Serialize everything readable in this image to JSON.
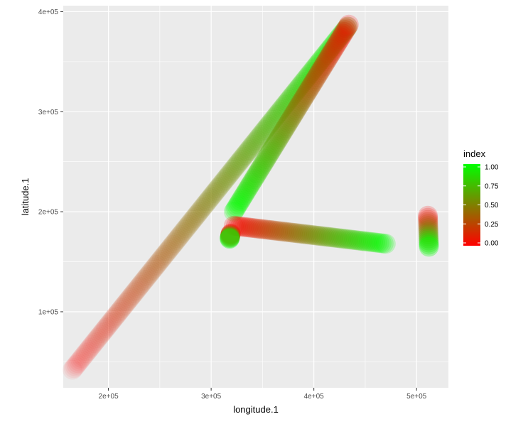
{
  "chart_data": {
    "type": "scatter",
    "xlabel": "longitude.1",
    "ylabel": "latitude.1",
    "xlim": [
      156000,
      531000
    ],
    "ylim": [
      24000,
      406000
    ],
    "x_ticks": [
      {
        "value": 200000,
        "label": "2e+05"
      },
      {
        "value": 300000,
        "label": "3e+05"
      },
      {
        "value": 400000,
        "label": "4e+05"
      },
      {
        "value": 500000,
        "label": "5e+05"
      }
    ],
    "y_ticks": [
      {
        "value": 100000,
        "label": "1e+05"
      },
      {
        "value": 200000,
        "label": "2e+05"
      },
      {
        "value": 300000,
        "label": "3e+05"
      },
      {
        "value": 400000,
        "label": "4e+05"
      }
    ],
    "grid": true,
    "legend": {
      "title": "index",
      "position": "right",
      "low_color": "#ff0000",
      "high_color": "#00ff00",
      "breaks": [
        {
          "value": 1.0,
          "label": "1.00"
        },
        {
          "value": 0.75,
          "label": "0.75"
        },
        {
          "value": 0.5,
          "label": "0.50"
        },
        {
          "value": 0.25,
          "label": "0.25"
        },
        {
          "value": 0.0,
          "label": "0.00"
        }
      ]
    },
    "series": [
      {
        "start": {
          "x": 165000,
          "y": 42000,
          "index": 0.0
        },
        "end": {
          "x": 433000,
          "y": 385000,
          "index": 1.0
        },
        "opacity_start": 0.15,
        "opacity_end": 0.45
      },
      {
        "start": {
          "x": 434000,
          "y": 387000,
          "index": 0.0
        },
        "end": {
          "x": 322000,
          "y": 200000,
          "index": 1.0
        },
        "opacity_start": 0.5,
        "opacity_end": 0.5
      },
      {
        "start": {
          "x": 322000,
          "y": 186000,
          "index": 0.0
        },
        "end": {
          "x": 470000,
          "y": 168000,
          "index": 1.0
        },
        "opacity_start": 0.5,
        "opacity_end": 0.5
      },
      {
        "start": {
          "x": 511000,
          "y": 196000,
          "index": 0.0
        },
        "end": {
          "x": 512000,
          "y": 165000,
          "index": 1.0
        },
        "opacity_start": 0.5,
        "opacity_end": 0.75
      },
      {
        "start": {
          "x": 319000,
          "y": 178000,
          "index": 0.0
        },
        "end": {
          "x": 318000,
          "y": 173000,
          "index": 1.0
        },
        "opacity_start": 0.9,
        "opacity_end": 0.9
      }
    ]
  }
}
